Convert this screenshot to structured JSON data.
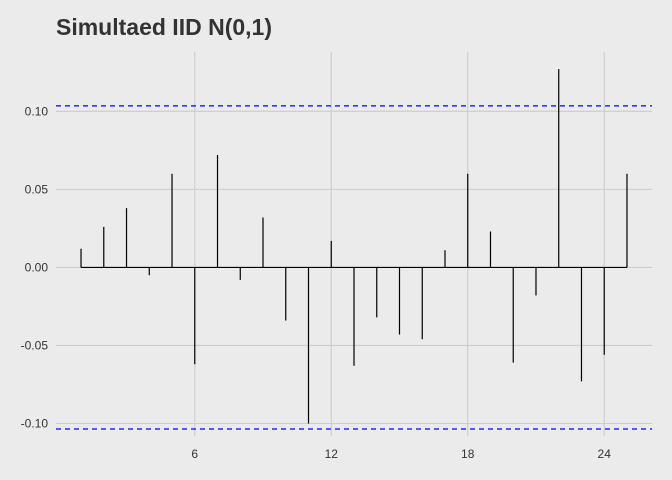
{
  "chart_data": {
    "type": "bar",
    "title": "Simultaed IID N(0,1)",
    "xlabel": "",
    "ylabel": "",
    "x": [
      1,
      2,
      3,
      4,
      5,
      6,
      7,
      8,
      9,
      10,
      11,
      12,
      13,
      14,
      15,
      16,
      17,
      18,
      19,
      20,
      21,
      22,
      23,
      24,
      25
    ],
    "values": [
      0.012,
      0.026,
      0.038,
      -0.005,
      0.06,
      -0.062,
      0.072,
      -0.008,
      0.032,
      -0.034,
      -0.1,
      0.017,
      -0.063,
      -0.032,
      -0.043,
      -0.046,
      0.011,
      0.06,
      0.023,
      -0.061,
      -0.018,
      0.127,
      -0.073,
      -0.056,
      0.06
    ],
    "xlim": [
      -0.1,
      26.1
    ],
    "ylim": [
      -0.108,
      0.138
    ],
    "x_ticks": [
      6,
      12,
      18,
      24
    ],
    "x_tick_labels": [
      "6",
      "12",
      "18",
      "24"
    ],
    "y_ticks": [
      -0.1,
      -0.05,
      0.0,
      0.05,
      0.1
    ],
    "y_tick_labels": [
      "-0.10",
      "-0.05",
      "0.00",
      "0.05",
      "0.10"
    ],
    "confidence_bounds": [
      0.1035,
      -0.1035
    ],
    "grid": true,
    "colors": {
      "background": "#ebebeb",
      "grid_major": "#cccccc",
      "bars": "#000000",
      "zero_line": "#000000",
      "confidence_lines": "#0000ff",
      "text": "#333333"
    }
  }
}
